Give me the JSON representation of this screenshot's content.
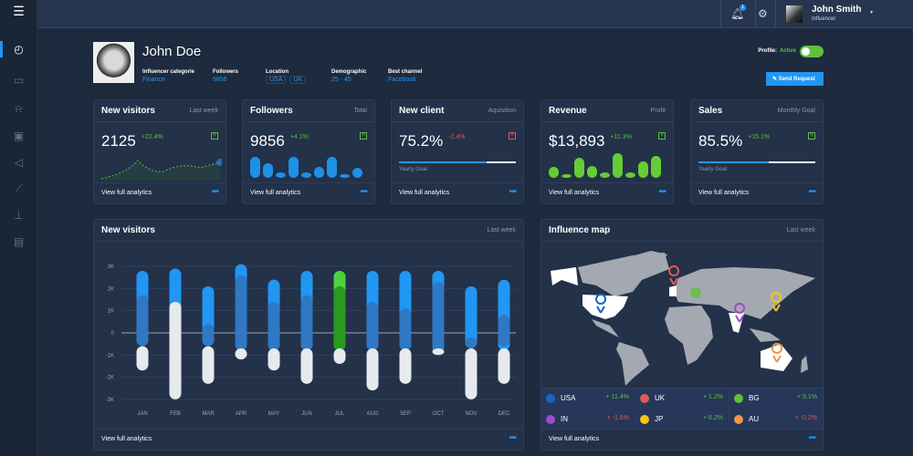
{
  "sidebar": {
    "items": [
      "menu-icon",
      "dashboard-icon",
      "messages-icon",
      "notifications-icon",
      "calendar-icon",
      "campaigns-icon",
      "analytics-icon",
      "reports-icon",
      "billing-icon"
    ]
  },
  "topbar": {
    "notification_count": "1",
    "user_name": "John Smith",
    "user_role": "Influencer"
  },
  "profile": {
    "name": "John Doe",
    "status_label": "Profile:",
    "status_value": "Active",
    "status_on": true,
    "send_request": "Send Request",
    "fields": [
      {
        "label": "Influencer categorie",
        "value": "Finance"
      },
      {
        "label": "Followers",
        "value": "9856"
      },
      {
        "label": "Location",
        "tags": [
          "USA",
          "UK"
        ]
      },
      {
        "label": "Demographic",
        "value": "25 - 45"
      },
      {
        "label": "Best channel",
        "value": "Facebook"
      }
    ]
  },
  "cards": [
    {
      "title": "New visitors",
      "sub": "Last week",
      "value": "2125",
      "change": "+22.4%",
      "up": true,
      "footer": "View full analytics"
    },
    {
      "title": "Followers",
      "sub": "Total",
      "value": "9856",
      "change": "+4.1%",
      "up": true,
      "footer": "View full analytics"
    },
    {
      "title": "New client",
      "sub": "Aquisition",
      "value": "75.2%",
      "change": "-2.4%",
      "up": false,
      "goal_label": "Yearly Goal",
      "goal": 0.75,
      "footer": "View full analytics"
    },
    {
      "title": "Revenue",
      "sub": "Profit",
      "value": "$13,893",
      "change": "+11.3%",
      "up": true,
      "footer": "View full analytics"
    },
    {
      "title": "Sales",
      "sub": "Monthly Goal",
      "value": "85.5%",
      "change": "+15.1%",
      "up": true,
      "goal_label": "Yearly Goal",
      "goal": 0.6,
      "footer": "View full analytics"
    }
  ],
  "colors": {
    "accent": "#2196f3",
    "positive": "#5fbf3b",
    "negative": "#e05a5a",
    "bg": "#1e2a3d",
    "card": "#233149"
  },
  "visitors_panel": {
    "title": "New visitors",
    "sub": "Last week",
    "footer": "View full analytics"
  },
  "map_panel": {
    "title": "Influence map",
    "sub": "Last week",
    "footer": "View full analytics",
    "countries": [
      {
        "name": "USA",
        "change": "+ 11.4%",
        "color": "#1565c0",
        "up": true
      },
      {
        "name": "UK",
        "change": "+ 1.2%",
        "color": "#e05a5a",
        "up": true
      },
      {
        "name": "BG",
        "change": "+ 9.1%",
        "color": "#5fbf3b",
        "up": true
      },
      {
        "name": "IN",
        "change": "+ -1.6%",
        "color": "#9c4dcc",
        "up": false
      },
      {
        "name": "JP",
        "change": "+ 6.2%",
        "color": "#f5c518",
        "up": true
      },
      {
        "name": "AU",
        "change": "+ -0.2%",
        "color": "#f0954a",
        "up": false
      }
    ]
  },
  "chart_data": {
    "type": "bar",
    "categories": [
      "JAN",
      "FEB",
      "MAR",
      "APR",
      "MAY",
      "JUN",
      "JUL",
      "AUG",
      "SEP",
      "OCT",
      "NOV",
      "DEC"
    ],
    "y_ticks": [
      "3K",
      "2K",
      "1K",
      "0",
      "-1K",
      "-2K",
      "-3K"
    ],
    "ylim": [
      -3000,
      3000
    ],
    "grid": true,
    "highlight": "JUL",
    "series": [
      {
        "color": "#2196f3",
        "ranges": [
          [
            2800,
            -600
          ],
          [
            2900,
            600
          ],
          [
            2100,
            -600
          ],
          [
            3100,
            -800
          ],
          [
            2400,
            -800
          ],
          [
            2800,
            -800
          ],
          [
            2800,
            -800
          ],
          [
            2800,
            -800
          ],
          [
            2800,
            -800
          ],
          [
            2800,
            -900
          ],
          [
            2100,
            -700
          ],
          [
            2400,
            -800
          ]
        ]
      },
      {
        "color": "#2f78c4",
        "ranges": [
          [
            1700,
            -600
          ],
          [
            1400,
            -500
          ],
          [
            400,
            -600
          ],
          [
            2600,
            -800
          ],
          [
            1400,
            -800
          ],
          [
            1700,
            -800
          ],
          [
            2100,
            -800
          ],
          [
            1400,
            -800
          ],
          [
            1100,
            -800
          ],
          [
            2300,
            -900
          ],
          [
            -200,
            -700
          ],
          [
            800,
            -600
          ]
        ]
      },
      {
        "color": "#e6e9ee",
        "ranges": [
          [
            -600,
            -1700
          ],
          [
            1400,
            -3000
          ],
          [
            -600,
            -2300
          ],
          [
            -700,
            -1200
          ],
          [
            -700,
            -1700
          ],
          [
            -700,
            -2300
          ],
          [
            -700,
            -1400
          ],
          [
            -700,
            -2600
          ],
          [
            -700,
            -2300
          ],
          [
            -700,
            -1000
          ],
          [
            -700,
            -3000
          ],
          [
            -700,
            -2300
          ]
        ]
      }
    ]
  }
}
